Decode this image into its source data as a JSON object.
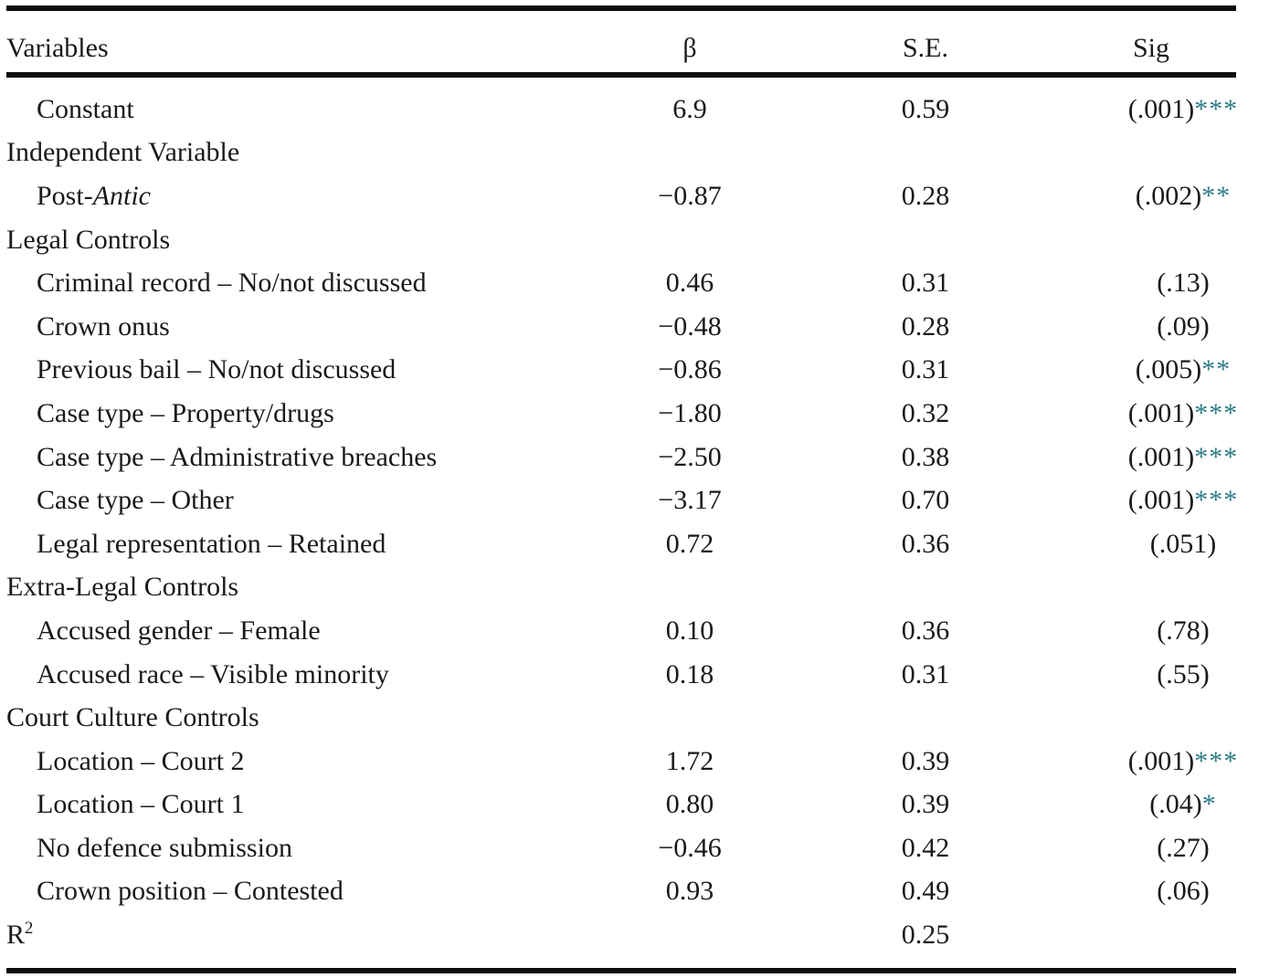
{
  "table": {
    "star_color": "#2e7c87",
    "text_color": "#1a1a1a",
    "rule_color": "#0c0c0c",
    "columns": [
      "Variables",
      "β",
      "S.E.",
      "Sig"
    ],
    "rows": [
      {
        "label": "Constant",
        "indent": true,
        "beta": "6.9",
        "se": "0.59",
        "sig": "(.001)",
        "stars": "***"
      },
      {
        "label": "Independent Variable",
        "section": true,
        "beta": "",
        "se": "",
        "sig": "",
        "stars": ""
      },
      {
        "label": "Post-",
        "label_italic": "Antic",
        "indent": true,
        "beta": "−0.87",
        "se": "0.28",
        "sig": "(.002)",
        "stars": "**"
      },
      {
        "label": "Legal Controls",
        "section": true,
        "beta": "",
        "se": "",
        "sig": "",
        "stars": ""
      },
      {
        "label": "Criminal record – No/not discussed",
        "indent": true,
        "beta": "0.46",
        "se": "0.31",
        "sig": "(.13)",
        "stars": ""
      },
      {
        "label": "Crown onus",
        "indent": true,
        "beta": "−0.48",
        "se": "0.28",
        "sig": "(.09)",
        "stars": ""
      },
      {
        "label": "Previous bail – No/not discussed",
        "indent": true,
        "beta": "−0.86",
        "se": "0.31",
        "sig": "(.005)",
        "stars": "**"
      },
      {
        "label": "Case type – Property/drugs",
        "indent": true,
        "beta": "−1.80",
        "se": "0.32",
        "sig": "(.001)",
        "stars": "***"
      },
      {
        "label": "Case type – Administrative breaches",
        "indent": true,
        "beta": "−2.50",
        "se": "0.38",
        "sig": "(.001)",
        "stars": "***"
      },
      {
        "label": "Case type – Other",
        "indent": true,
        "beta": "−3.17",
        "se": "0.70",
        "sig": "(.001)",
        "stars": "***"
      },
      {
        "label": "Legal representation – Retained",
        "indent": true,
        "beta": "0.72",
        "se": "0.36",
        "sig": "(.051)",
        "stars": ""
      },
      {
        "label": "Extra-Legal Controls",
        "section": true,
        "beta": "",
        "se": "",
        "sig": "",
        "stars": ""
      },
      {
        "label": "Accused gender – Female",
        "indent": true,
        "beta": "0.10",
        "se": "0.36",
        "sig": "(.78)",
        "stars": ""
      },
      {
        "label": "Accused race – Visible minority",
        "indent": true,
        "beta": "0.18",
        "se": "0.31",
        "sig": "(.55)",
        "stars": ""
      },
      {
        "label": "Court Culture Controls",
        "section": true,
        "beta": "",
        "se": "",
        "sig": "",
        "stars": ""
      },
      {
        "label": "Location – Court 2",
        "indent": true,
        "beta": "1.72",
        "se": "0.39",
        "sig": "(.001)",
        "stars": "***"
      },
      {
        "label": "Location – Court 1",
        "indent": true,
        "beta": "0.80",
        "se": "0.39",
        "sig": "(.04)",
        "stars": "*"
      },
      {
        "label": "No defence submission",
        "indent": true,
        "beta": "−0.46",
        "se": "0.42",
        "sig": "(.27)",
        "stars": ""
      },
      {
        "label": "Crown position – Contested",
        "indent": true,
        "beta": "0.93",
        "se": "0.49",
        "sig": "(.06)",
        "stars": ""
      },
      {
        "label": "R",
        "label_sup": "2",
        "section": true,
        "beta": "",
        "se": "0.25",
        "sig": "",
        "stars": ""
      }
    ]
  }
}
